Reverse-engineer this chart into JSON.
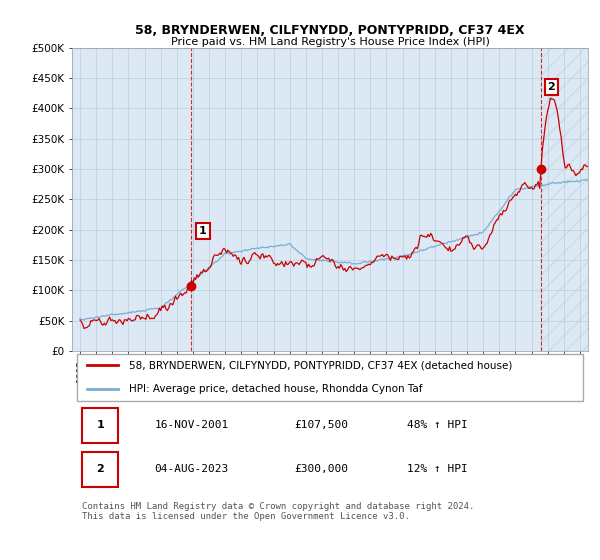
{
  "title": "58, BRYNDERWEN, CILFYNYDD, PONTYPRIDD, CF37 4EX",
  "subtitle": "Price paid vs. HM Land Registry's House Price Index (HPI)",
  "ylim": [
    0,
    500000
  ],
  "yticks": [
    0,
    50000,
    100000,
    150000,
    200000,
    250000,
    300000,
    350000,
    400000,
    450000,
    500000
  ],
  "ytick_labels": [
    "£0",
    "£50K",
    "£100K",
    "£150K",
    "£200K",
    "£250K",
    "£300K",
    "£350K",
    "£400K",
    "£450K",
    "£500K"
  ],
  "sale1_year": 2001.875,
  "sale1_price": 107500,
  "sale2_year": 2023.58,
  "sale2_price": 300000,
  "red_line_color": "#cc0000",
  "blue_line_color": "#7aadcf",
  "plot_bg_color": "#dce9f5",
  "background_color": "#ffffff",
  "grid_color": "#b8cfe0",
  "legend_label_red": "58, BRYNDERWEN, CILFYNYDD, PONTYPRIDD, CF37 4EX (detached house)",
  "legend_label_blue": "HPI: Average price, detached house, Rhondda Cynon Taf",
  "annotation_color": "#cc0000",
  "footer": "Contains HM Land Registry data © Crown copyright and database right 2024.\nThis data is licensed under the Open Government Licence v3.0.",
  "info1_date": "16-NOV-2001",
  "info1_price": "£107,500",
  "info1_hpi": "48% ↑ HPI",
  "info2_date": "04-AUG-2023",
  "info2_price": "£300,000",
  "info2_hpi": "12% ↑ HPI"
}
